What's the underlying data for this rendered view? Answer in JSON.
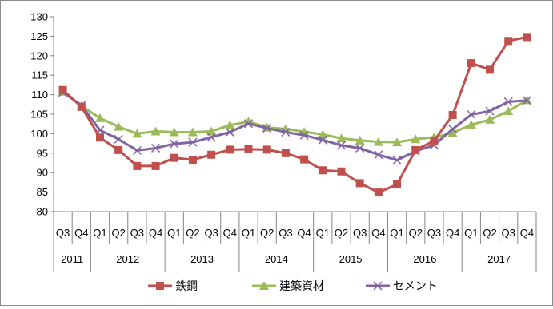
{
  "chart_data": {
    "type": "line",
    "title": "",
    "xlabel": "",
    "ylabel": "",
    "ylim": [
      80,
      130
    ],
    "yticks": [
      80,
      85,
      90,
      95,
      100,
      105,
      110,
      115,
      120,
      125,
      130
    ],
    "grid": false,
    "legend_position": "bottom",
    "quarters": [
      "Q3",
      "Q4",
      "Q1",
      "Q2",
      "Q3",
      "Q4",
      "Q1",
      "Q2",
      "Q3",
      "Q4",
      "Q1",
      "Q2",
      "Q3",
      "Q4",
      "Q1",
      "Q2",
      "Q3",
      "Q4",
      "Q1",
      "Q2",
      "Q3",
      "Q4",
      "Q1",
      "Q2",
      "Q3",
      "Q4"
    ],
    "years": [
      {
        "label": "2011",
        "quarters": 2
      },
      {
        "label": "2012",
        "quarters": 4
      },
      {
        "label": "2013",
        "quarters": 4
      },
      {
        "label": "2014",
        "quarters": 4
      },
      {
        "label": "2015",
        "quarters": 4
      },
      {
        "label": "2016",
        "quarters": 4
      },
      {
        "label": "2017",
        "quarters": 4
      }
    ],
    "series": [
      {
        "name": "鉄鋼",
        "color": "#c0504d",
        "marker": "square",
        "values": [
          111.2,
          106.9,
          99.0,
          95.8,
          91.7,
          91.7,
          93.8,
          93.3,
          94.6,
          95.9,
          96.0,
          95.9,
          95.0,
          93.4,
          90.6,
          90.3,
          87.3,
          84.9,
          87.0,
          95.8,
          98.2,
          104.8,
          118.1,
          116.4,
          123.8,
          124.8
        ]
      },
      {
        "name": "建築資材",
        "color": "#9bbb59",
        "marker": "triangle",
        "values": [
          110.8,
          107.1,
          104.0,
          101.8,
          100.0,
          100.6,
          100.4,
          100.4,
          100.6,
          102.2,
          103.1,
          101.6,
          101.2,
          100.5,
          99.8,
          98.8,
          98.3,
          97.9,
          97.8,
          98.6,
          99.1,
          100.2,
          102.3,
          103.6,
          105.8,
          108.6
        ]
      },
      {
        "name": "セメント",
        "color": "#8064a2",
        "marker": "x",
        "values": [
          110.6,
          107.3,
          100.9,
          98.6,
          95.7,
          96.3,
          97.4,
          97.8,
          99.1,
          100.4,
          102.6,
          101.4,
          100.4,
          99.6,
          98.4,
          97.0,
          96.3,
          94.6,
          93.2,
          95.5,
          97.1,
          101.2,
          104.9,
          105.8,
          108.2,
          108.5
        ]
      }
    ]
  }
}
